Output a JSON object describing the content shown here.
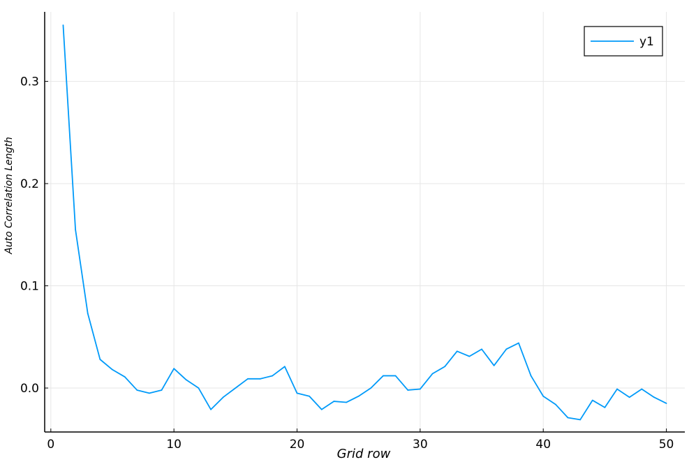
{
  "chart_data": {
    "type": "line",
    "xlabel": "Grid row",
    "ylabel": "Auto Correlation Length",
    "xlim": [
      -0.5,
      51.5
    ],
    "ylim": [
      -0.043,
      0.368
    ],
    "xticks": [
      0,
      10,
      20,
      30,
      40,
      50
    ],
    "xtick_labels": [
      "0",
      "10",
      "20",
      "30",
      "40",
      "50"
    ],
    "yticks": [
      0.0,
      0.1,
      0.2,
      0.3
    ],
    "ytick_labels": [
      "0.0",
      "0.1",
      "0.2",
      "0.3"
    ],
    "grid": true,
    "legend_position": "top-right",
    "series": [
      {
        "name": "y1",
        "color": "#009af9",
        "x": [
          1,
          2,
          3,
          4,
          5,
          6,
          7,
          8,
          9,
          10,
          11,
          12,
          13,
          14,
          15,
          16,
          17,
          18,
          19,
          20,
          21,
          22,
          23,
          24,
          25,
          26,
          27,
          28,
          29,
          30,
          31,
          32,
          33,
          34,
          35,
          36,
          37,
          38,
          39,
          40,
          41,
          42,
          43,
          44,
          45,
          46,
          47,
          48,
          49,
          50
        ],
        "y": [
          0.355,
          0.155,
          0.073,
          0.028,
          0.018,
          0.011,
          -0.002,
          -0.005,
          -0.002,
          0.019,
          0.008,
          0.0,
          -0.021,
          -0.009,
          0.0,
          0.009,
          0.009,
          0.012,
          0.021,
          -0.005,
          -0.008,
          -0.021,
          -0.013,
          -0.014,
          -0.008,
          0.0,
          0.012,
          0.012,
          -0.002,
          -0.001,
          0.014,
          0.021,
          0.036,
          0.031,
          0.038,
          0.022,
          0.038,
          0.044,
          0.012,
          -0.008,
          -0.016,
          -0.029,
          -0.031,
          -0.012,
          -0.019,
          -0.001,
          -0.009,
          -0.001,
          -0.009,
          -0.015
        ]
      }
    ]
  }
}
